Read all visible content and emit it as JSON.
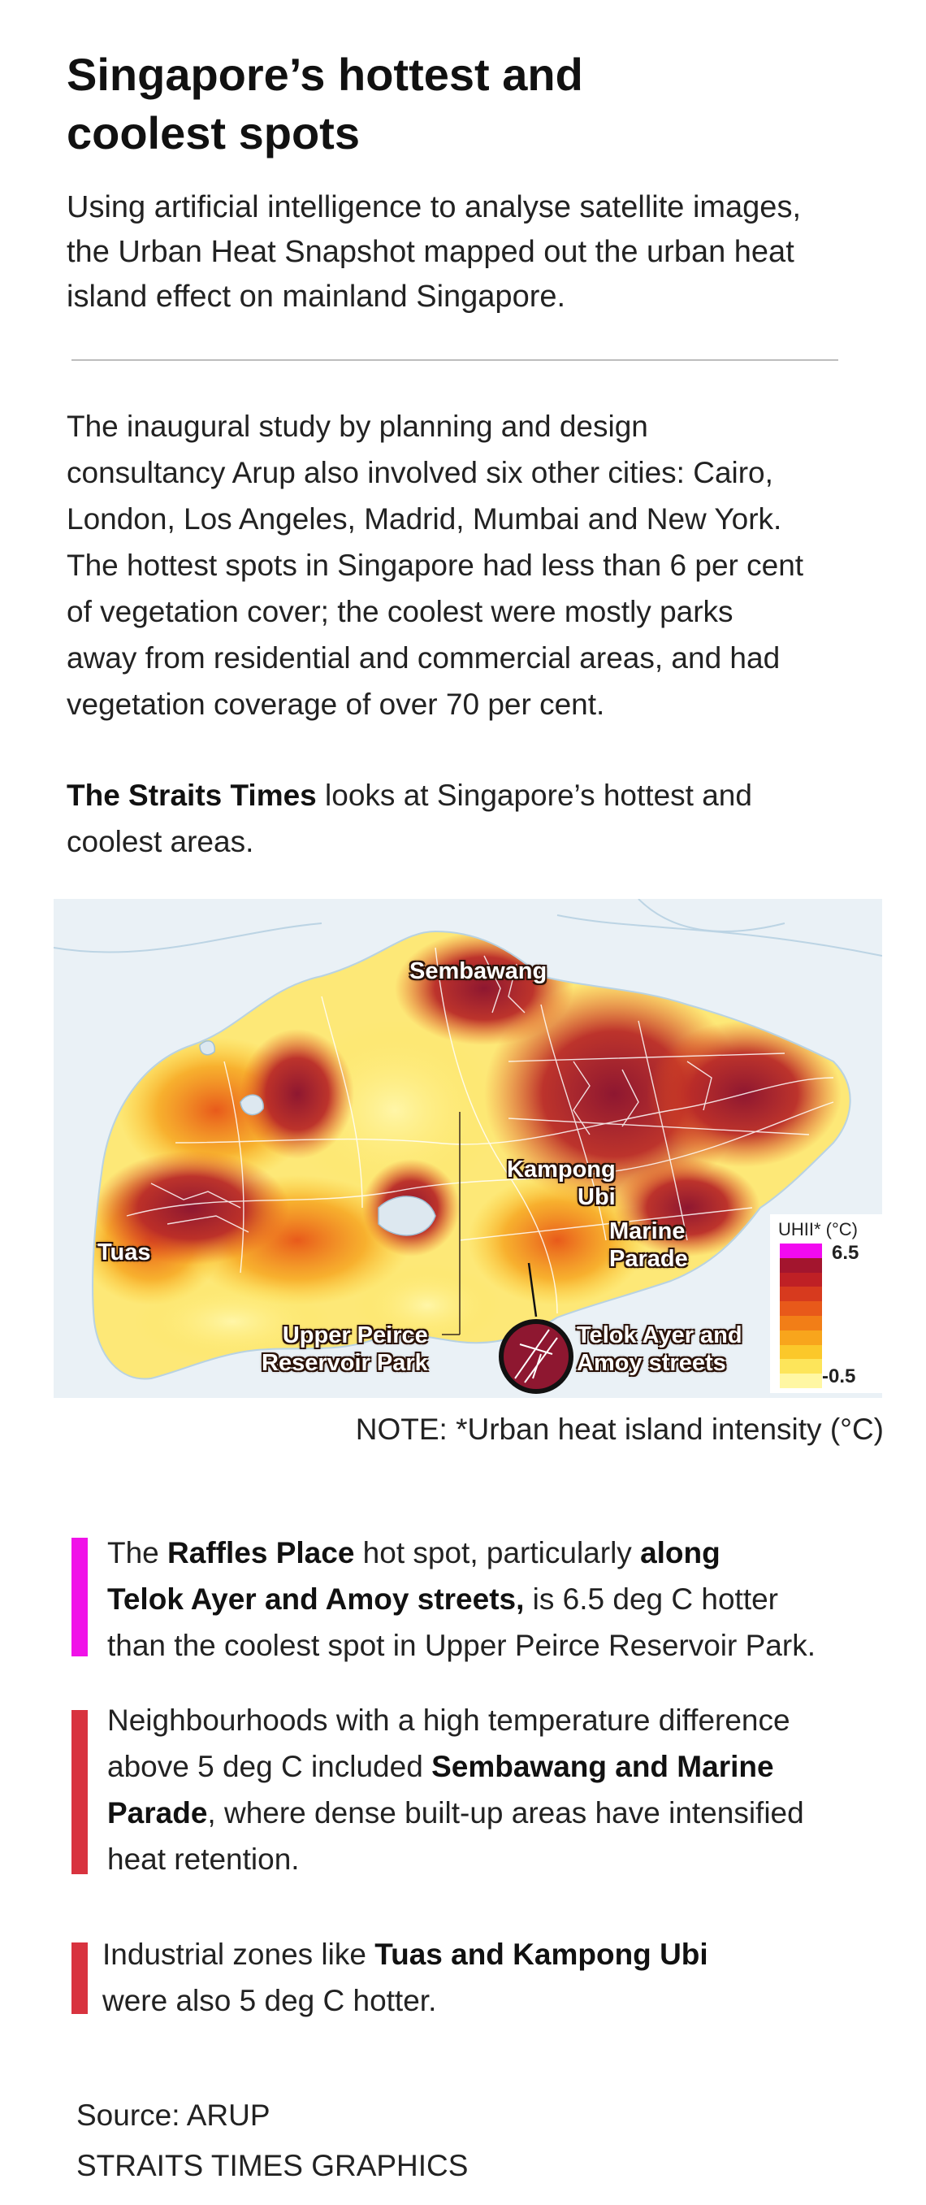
{
  "title": {
    "line1": "Singapore’s hottest and",
    "line2": "coolest spots"
  },
  "intro": {
    "line1": "Using artificial intelligence to analyse satellite images,",
    "line2": "the Urban Heat Snapshot mapped out the urban heat",
    "line3": "island effect on mainland Singapore."
  },
  "body": {
    "line1": "The inaugural study by planning and design",
    "line2": "consultancy Arup also involved six other cities: Cairo,",
    "line3": "London, Los Angeles, Madrid, Mumbai and New York.",
    "line4": "The hottest spots in Singapore had less than 6 per cent",
    "line5": "of vegetation cover; the coolest were mostly parks",
    "line6": "away from residential and commercial areas, and had",
    "line7": "vegetation coverage of over 70 per cent."
  },
  "straits_times": {
    "bold": "The Straits Times",
    "rest1": " looks at Singapore’s hottest and",
    "line2": "coolest areas."
  },
  "map": {
    "labels": {
      "sembawang": "Sembawang",
      "kampong1": "Kampong",
      "kampong2": "Ubi",
      "tuas": "Tuas",
      "marine1": "Marine",
      "marine2": "Parade",
      "upper1": "Upper Peirce",
      "upper2": "Reservoir Park",
      "telok1": "Telok Ayer and",
      "telok2": "Amoy streets"
    },
    "legend": {
      "title": "UHII* (°C)",
      "max": "6.5",
      "min": "-0.5",
      "colors": [
        "#f20af0",
        "#a3152e",
        "#bf2025",
        "#d73a1e",
        "#e8591a",
        "#f27e17",
        "#f8a51c",
        "#fbc82a",
        "#fde55a",
        "#fff7a3"
      ]
    },
    "colors": {
      "water": "#eaf1f6",
      "cool": "#fff3a0",
      "warm": "#fcc52a",
      "hot": "#e2531c",
      "hottest": "#9b1b34"
    }
  },
  "note": "NOTE: *Urban heat island intensity (°C)",
  "bullets": [
    {
      "color": "#f012e8",
      "l1a": "The ",
      "l1b": "Raffles Place",
      "l1c": " hot spot, particularly ",
      "l1d": "along",
      "l2a": "Telok Ayer and Amoy streets,",
      "l2b": " is 6.5 deg C hotter",
      "l3": "than the coolest spot in Upper Peirce Reservoir Park."
    },
    {
      "color": "#d8333f",
      "l1": "Neighbourhoods with a high temperature difference",
      "l2a": "above 5 deg C included ",
      "l2b": "Sembawang and Marine",
      "l3a": "Parade",
      "l3b": ", where dense built-up areas have intensified",
      "l4": "heat retention."
    },
    {
      "color": "#d8333f",
      "l1a": "Industrial zones like ",
      "l1b": "Tuas and Kampong Ubi",
      "l2": "were also 5 deg C hotter."
    }
  ],
  "source": {
    "line1": "Source: ARUP",
    "line2": "STRAITS TIMES GRAPHICS"
  }
}
